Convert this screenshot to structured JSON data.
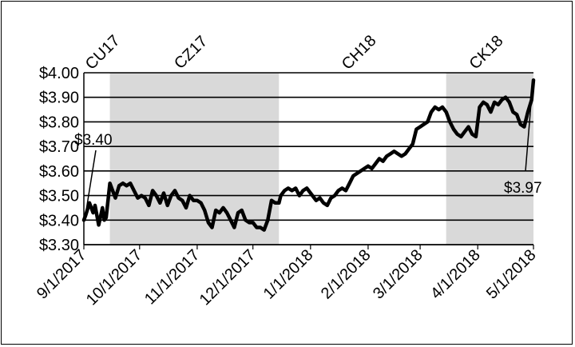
{
  "chart_data": {
    "type": "line",
    "title": "",
    "xlabel": "",
    "ylabel": "",
    "ylim": [
      3.3,
      4.0
    ],
    "y_ticks": [
      "$3.30",
      "$3.40",
      "$3.50",
      "$3.60",
      "$3.70",
      "$3.80",
      "$3.90",
      "$4.00"
    ],
    "y_tick_values": [
      3.3,
      3.4,
      3.5,
      3.6,
      3.7,
      3.8,
      3.9,
      4.0
    ],
    "x_range": [
      "2017-09-01",
      "2018-05-01"
    ],
    "x_ticks": [
      "9/1/2017",
      "10/1/2017",
      "11/1/2017",
      "12/1/2017",
      "1/1/2018",
      "2/1/2018",
      "3/1/2018",
      "4/1/2018",
      "5/1/2018"
    ],
    "x_tick_dates": [
      "2017-09-01",
      "2017-10-01",
      "2017-11-01",
      "2017-12-01",
      "2018-01-01",
      "2018-02-01",
      "2018-03-01",
      "2018-04-01",
      "2018-05-01"
    ],
    "grid": "horizontal",
    "contracts": [
      {
        "label": "CU17",
        "start": "2017-09-01",
        "end": "2017-09-15",
        "shaded": false
      },
      {
        "label": "CZ17",
        "start": "2017-09-15",
        "end": "2017-12-15",
        "shaded": true
      },
      {
        "label": "CH18",
        "start": "2017-12-15",
        "end": "2018-03-15",
        "shaded": false
      },
      {
        "label": "CK18",
        "start": "2018-03-15",
        "end": "2018-05-01",
        "shaded": true
      }
    ],
    "shade_color": "#d9d9d9",
    "line_color": "#000000",
    "annotations": [
      {
        "text": "$3.40",
        "date": "2017-09-01",
        "value": 3.4
      },
      {
        "text": "$3.97",
        "date": "2018-05-01",
        "value": 3.97
      }
    ],
    "series": [
      {
        "dates": [
          "2017-09-01",
          "2017-09-02",
          "2017-09-04",
          "2017-09-06",
          "2017-09-07",
          "2017-09-09",
          "2017-09-11",
          "2017-09-12",
          "2017-09-13",
          "2017-09-15",
          "2017-09-16",
          "2017-09-18",
          "2017-09-20",
          "2017-09-22",
          "2017-09-24",
          "2017-09-26",
          "2017-09-28",
          "2017-09-30",
          "2017-10-02",
          "2017-10-04",
          "2017-10-06",
          "2017-10-08",
          "2017-10-10",
          "2017-10-12",
          "2017-10-14",
          "2017-10-16",
          "2017-10-18",
          "2017-10-20",
          "2017-10-22",
          "2017-10-24",
          "2017-10-26",
          "2017-10-28",
          "2017-10-30",
          "2017-11-01",
          "2017-11-03",
          "2017-11-05",
          "2017-11-07",
          "2017-11-09",
          "2017-11-11",
          "2017-11-13",
          "2017-11-15",
          "2017-11-17",
          "2017-11-19",
          "2017-11-21",
          "2017-11-23",
          "2017-11-25",
          "2017-11-27",
          "2017-11-29",
          "2017-12-01",
          "2017-12-03",
          "2017-12-05",
          "2017-12-07",
          "2017-12-09",
          "2017-12-11",
          "2017-12-13",
          "2017-12-15",
          "2017-12-16",
          "2017-12-18",
          "2017-12-20",
          "2017-12-22",
          "2017-12-24",
          "2017-12-26",
          "2017-12-28",
          "2017-12-30",
          "2018-01-02",
          "2018-01-04",
          "2018-01-06",
          "2018-01-08",
          "2018-01-10",
          "2018-01-12",
          "2018-01-14",
          "2018-01-16",
          "2018-01-18",
          "2018-01-20",
          "2018-01-22",
          "2018-01-24",
          "2018-01-26",
          "2018-01-28",
          "2018-01-30",
          "2018-02-01",
          "2018-02-03",
          "2018-02-05",
          "2018-02-07",
          "2018-02-09",
          "2018-02-11",
          "2018-02-13",
          "2018-02-15",
          "2018-02-17",
          "2018-02-19",
          "2018-02-21",
          "2018-02-23",
          "2018-02-25",
          "2018-02-27",
          "2018-03-01",
          "2018-03-03",
          "2018-03-05",
          "2018-03-07",
          "2018-03-09",
          "2018-03-11",
          "2018-03-13",
          "2018-03-15",
          "2018-03-17",
          "2018-03-19",
          "2018-03-21",
          "2018-03-23",
          "2018-03-25",
          "2018-03-27",
          "2018-03-29",
          "2018-03-31",
          "2018-04-02",
          "2018-04-04",
          "2018-04-06",
          "2018-04-08",
          "2018-04-10",
          "2018-04-12",
          "2018-04-14",
          "2018-04-16",
          "2018-04-18",
          "2018-04-20",
          "2018-04-22",
          "2018-04-24",
          "2018-04-26",
          "2018-04-28",
          "2018-04-30",
          "2018-05-01"
        ],
        "values": [
          3.4,
          3.42,
          3.47,
          3.43,
          3.46,
          3.38,
          3.45,
          3.4,
          3.41,
          3.55,
          3.53,
          3.49,
          3.54,
          3.55,
          3.54,
          3.55,
          3.52,
          3.49,
          3.5,
          3.49,
          3.46,
          3.52,
          3.5,
          3.47,
          3.51,
          3.46,
          3.5,
          3.52,
          3.49,
          3.48,
          3.45,
          3.5,
          3.48,
          3.48,
          3.47,
          3.44,
          3.39,
          3.37,
          3.44,
          3.43,
          3.45,
          3.43,
          3.4,
          3.37,
          3.43,
          3.44,
          3.4,
          3.39,
          3.39,
          3.37,
          3.37,
          3.36,
          3.4,
          3.48,
          3.47,
          3.47,
          3.5,
          3.52,
          3.53,
          3.52,
          3.53,
          3.5,
          3.52,
          3.53,
          3.5,
          3.48,
          3.49,
          3.47,
          3.46,
          3.49,
          3.5,
          3.52,
          3.53,
          3.52,
          3.55,
          3.58,
          3.59,
          3.6,
          3.61,
          3.62,
          3.61,
          3.63,
          3.65,
          3.64,
          3.66,
          3.67,
          3.68,
          3.67,
          3.66,
          3.67,
          3.69,
          3.71,
          3.77,
          3.78,
          3.79,
          3.8,
          3.84,
          3.86,
          3.85,
          3.86,
          3.84,
          3.8,
          3.77,
          3.75,
          3.74,
          3.76,
          3.78,
          3.75,
          3.74,
          3.86,
          3.88,
          3.87,
          3.84,
          3.88,
          3.87,
          3.89,
          3.9,
          3.88,
          3.84,
          3.83,
          3.79,
          3.78,
          3.84,
          3.89,
          3.97
        ]
      }
    ]
  }
}
